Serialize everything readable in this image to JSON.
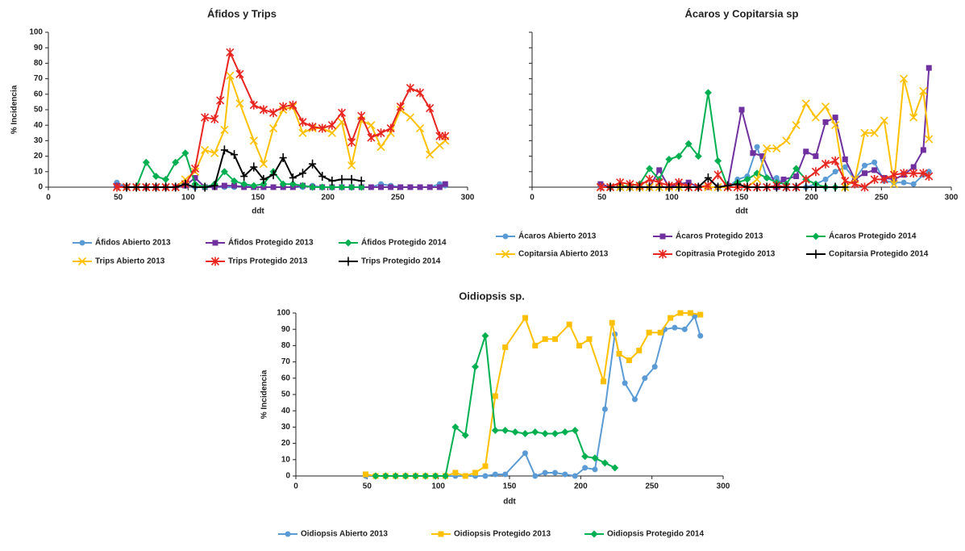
{
  "chart_data": [
    {
      "type": "line",
      "title": "Áfidos y Trips",
      "xlabel": "ddt",
      "ylabel": "% Incidencia",
      "xlim": [
        0,
        300
      ],
      "xticks": [
        0,
        50,
        100,
        150,
        200,
        250,
        300
      ],
      "ylim": [
        0,
        100
      ],
      "yticks": [
        0,
        10,
        20,
        30,
        40,
        50,
        60,
        70,
        80,
        90,
        100
      ],
      "ytick_labels": true,
      "series": [
        {
          "name": "Áfidos Abierto 2013",
          "color": "#5b9bd5",
          "marker": "circle",
          "x": [
            49,
            56,
            63,
            70,
            77,
            84,
            91,
            98,
            105,
            112,
            119,
            126,
            133,
            140,
            147,
            154,
            161,
            168,
            175,
            182,
            189,
            196,
            203,
            210,
            217,
            224,
            231,
            238,
            245,
            252,
            259,
            266,
            273,
            280,
            284
          ],
          "values": [
            3,
            0,
            0,
            0,
            0,
            0,
            0,
            1,
            0,
            0,
            0,
            0,
            0,
            1,
            0,
            0,
            0,
            0,
            0,
            0,
            1,
            0,
            0,
            0,
            0,
            0,
            0,
            2,
            1,
            0,
            0,
            0,
            0,
            2,
            1
          ]
        },
        {
          "name": "Áfidos Protegido 2013",
          "color": "#7030a0",
          "marker": "square",
          "x": [
            49,
            56,
            63,
            70,
            77,
            84,
            91,
            98,
            105,
            112,
            119,
            126,
            133,
            140,
            147,
            154,
            161,
            168,
            175,
            182,
            189,
            196,
            203,
            210,
            217,
            224,
            231,
            238,
            245,
            252,
            259,
            266,
            273,
            280,
            284
          ],
          "values": [
            1,
            0,
            0,
            0,
            0,
            0,
            0,
            1,
            6,
            0,
            0,
            1,
            1,
            0,
            0,
            0,
            0,
            0,
            0,
            1,
            0,
            0,
            0,
            0,
            0,
            0,
            0,
            0,
            0,
            0,
            0,
            0,
            0,
            0,
            2
          ]
        },
        {
          "name": "Áfidos Protegido 2014",
          "color": "#00b050",
          "marker": "diamond",
          "x": [
            56,
            63,
            70,
            77,
            84,
            91,
            98,
            105,
            112,
            119,
            126,
            133,
            140,
            147,
            154,
            161,
            168,
            175,
            182,
            189,
            196,
            203,
            210,
            217,
            224
          ],
          "values": [
            0,
            0,
            16,
            7,
            5,
            16,
            22,
            2,
            0,
            2,
            10,
            4,
            2,
            1,
            2,
            10,
            2,
            2,
            1,
            0,
            0,
            0,
            0,
            0,
            0
          ]
        },
        {
          "name": "Trips Abierto 2013",
          "color": "#ffc000",
          "marker": "x",
          "x": [
            49,
            56,
            63,
            70,
            77,
            84,
            91,
            98,
            105,
            112,
            119,
            126,
            130,
            137,
            147,
            154,
            161,
            168,
            175,
            182,
            189,
            196,
            203,
            210,
            217,
            224,
            231,
            238,
            245,
            252,
            259,
            266,
            273,
            280,
            284
          ],
          "values": [
            0,
            0,
            0,
            0,
            0,
            0,
            0,
            5,
            10,
            24,
            22,
            37,
            72,
            54,
            30,
            15,
            38,
            50,
            52,
            35,
            38,
            38,
            35,
            42,
            14,
            43,
            40,
            26,
            35,
            50,
            45,
            38,
            21,
            27,
            30
          ]
        },
        {
          "name": "Trips Protegido 2013",
          "color": "#e8251f",
          "marker": "star",
          "x": [
            49,
            56,
            63,
            70,
            77,
            84,
            91,
            98,
            105,
            112,
            119,
            123,
            130,
            137,
            147,
            154,
            161,
            168,
            175,
            182,
            189,
            196,
            203,
            210,
            217,
            224,
            231,
            238,
            245,
            252,
            259,
            266,
            273,
            280,
            284
          ],
          "values": [
            0,
            0,
            0,
            0,
            0,
            0,
            0,
            2,
            12,
            45,
            44,
            56,
            87,
            73,
            53,
            50,
            48,
            52,
            53,
            42,
            39,
            38,
            40,
            48,
            29,
            46,
            32,
            35,
            38,
            52,
            64,
            61,
            51,
            33,
            33
          ]
        },
        {
          "name": "Trips Protegido 2014",
          "color": "#000000",
          "marker": "plus",
          "x": [
            56,
            63,
            70,
            77,
            84,
            91,
            98,
            105,
            112,
            119,
            126,
            133,
            140,
            147,
            154,
            161,
            168,
            175,
            182,
            189,
            196,
            203,
            210,
            217,
            224
          ],
          "values": [
            0,
            0,
            0,
            0,
            0,
            0,
            2,
            0,
            0,
            1,
            24,
            21,
            7,
            13,
            5,
            8,
            19,
            6,
            9,
            15,
            7,
            4,
            5,
            5,
            4
          ]
        }
      ]
    },
    {
      "type": "line",
      "title": "Ácaros y Copitarsia sp",
      "xlabel": "ddt",
      "xlim": [
        0,
        300
      ],
      "xticks": [
        0,
        50,
        100,
        150,
        200,
        250,
        300
      ],
      "ylim": [
        0,
        100
      ],
      "yticks": [
        0,
        10,
        20,
        30,
        40,
        50,
        60,
        70,
        80,
        90,
        100
      ],
      "ytick_labels": false,
      "series": [
        {
          "name": "Ácaros Abierto 2013",
          "color": "#5b9bd5",
          "marker": "circle",
          "x": [
            49,
            56,
            63,
            70,
            77,
            84,
            91,
            98,
            105,
            112,
            119,
            126,
            133,
            140,
            147,
            154,
            161,
            168,
            175,
            182,
            189,
            196,
            203,
            210,
            217,
            224,
            231,
            238,
            245,
            252,
            259,
            266,
            273,
            280,
            284
          ],
          "values": [
            0,
            0,
            0,
            0,
            0,
            0,
            0,
            0,
            0,
            0,
            0,
            0,
            0,
            0,
            5,
            7,
            26,
            6,
            6,
            0,
            0,
            0,
            2,
            5,
            10,
            13,
            5,
            14,
            16,
            4,
            3,
            3,
            2,
            8,
            10
          ]
        },
        {
          "name": "Ácaros Protegido 2013",
          "color": "#7030a0",
          "marker": "square",
          "x": [
            49,
            56,
            63,
            70,
            77,
            84,
            91,
            98,
            105,
            112,
            119,
            126,
            133,
            140,
            150,
            158,
            165,
            175,
            180,
            189,
            196,
            203,
            210,
            217,
            224,
            231,
            238,
            245,
            252,
            259,
            266,
            273,
            280,
            284
          ],
          "values": [
            2,
            0,
            0,
            0,
            0,
            0,
            11,
            0,
            2,
            3,
            0,
            0,
            0,
            1,
            50,
            22,
            20,
            0,
            5,
            7,
            23,
            20,
            42,
            45,
            18,
            5,
            9,
            11,
            6,
            5,
            8,
            13,
            24,
            77
          ]
        },
        {
          "name": "Ácaros Protegido 2014",
          "color": "#00b050",
          "marker": "diamond",
          "x": [
            56,
            63,
            70,
            77,
            84,
            91,
            98,
            105,
            112,
            119,
            126,
            133,
            140,
            147,
            154,
            161,
            168,
            175,
            182,
            189,
            196,
            203,
            210,
            217,
            224
          ],
          "values": [
            0,
            0,
            1,
            2,
            12,
            5,
            18,
            20,
            28,
            20,
            61,
            17,
            0,
            3,
            5,
            9,
            6,
            3,
            2,
            12,
            5,
            2,
            0,
            0,
            0
          ]
        },
        {
          "name": "Copitarsia Abierto 2013",
          "color": "#ffc000",
          "marker": "x",
          "x": [
            49,
            56,
            63,
            70,
            77,
            84,
            91,
            98,
            105,
            112,
            119,
            126,
            133,
            140,
            147,
            154,
            161,
            168,
            175,
            182,
            189,
            196,
            203,
            210,
            217,
            224,
            231,
            238,
            245,
            252,
            259,
            266,
            273,
            280,
            284
          ],
          "values": [
            0,
            0,
            0,
            0,
            0,
            0,
            0,
            0,
            0,
            0,
            0,
            0,
            0,
            0,
            0,
            0,
            5,
            25,
            25,
            30,
            40,
            54,
            45,
            52,
            40,
            0,
            5,
            35,
            35,
            43,
            2,
            70,
            45,
            62,
            31
          ]
        },
        {
          "name": "Copitrasia Protegido 2013",
          "color": "#e8251f",
          "marker": "star",
          "x": [
            49,
            56,
            63,
            70,
            77,
            84,
            91,
            98,
            105,
            112,
            119,
            126,
            133,
            140,
            147,
            154,
            161,
            168,
            175,
            182,
            189,
            196,
            203,
            210,
            217,
            224,
            231,
            238,
            245,
            252,
            259,
            266,
            273,
            280,
            284
          ],
          "values": [
            0,
            0,
            3,
            2,
            1,
            5,
            3,
            1,
            3,
            0,
            0,
            1,
            8,
            0,
            0,
            0,
            0,
            0,
            1,
            0,
            0,
            5,
            10,
            15,
            17,
            4,
            2,
            0,
            5,
            5,
            8,
            9,
            9,
            9,
            7
          ]
        },
        {
          "name": "Copitarsia Protegido 2014",
          "color": "#000000",
          "marker": "plus",
          "x": [
            56,
            63,
            70,
            77,
            84,
            91,
            98,
            105,
            112,
            119,
            126,
            133,
            140,
            147,
            154,
            161,
            168,
            175,
            182,
            189,
            196,
            203,
            210,
            217,
            224
          ],
          "values": [
            0,
            0,
            0,
            0,
            0,
            0,
            0,
            0,
            0,
            0,
            6,
            0,
            1,
            2,
            0,
            0,
            0,
            0,
            0,
            0,
            0,
            0,
            0,
            0,
            0
          ]
        }
      ]
    },
    {
      "type": "line",
      "title": "Oidiopsis sp.",
      "xlabel": "ddt",
      "ylabel": "% Incidencia",
      "xlim": [
        0,
        300
      ],
      "xticks": [
        0,
        50,
        100,
        150,
        200,
        250,
        300
      ],
      "ylim": [
        0,
        100
      ],
      "yticks": [
        0,
        10,
        20,
        30,
        40,
        50,
        60,
        70,
        80,
        90,
        100
      ],
      "ytick_labels": true,
      "series": [
        {
          "name": "Oidiopsis Abierto 2013",
          "color": "#5b9bd5",
          "marker": "circle",
          "x": [
            49,
            56,
            63,
            70,
            77,
            84,
            91,
            98,
            105,
            112,
            119,
            126,
            133,
            140,
            147,
            161,
            168,
            175,
            182,
            189,
            196,
            203,
            210,
            217,
            224,
            231,
            238,
            245,
            252,
            259,
            266,
            273,
            280,
            284
          ],
          "values": [
            0,
            0,
            0,
            0,
            0,
            0,
            0,
            0,
            0,
            0,
            0,
            0,
            0,
            1,
            1,
            14,
            0,
            2,
            2,
            1,
            0,
            5,
            4,
            41,
            87,
            57,
            47,
            60,
            67,
            90,
            91,
            90,
            98,
            86
          ]
        },
        {
          "name": "Oidiopsis Protegido 2013",
          "color": "#ffc000",
          "marker": "square",
          "x": [
            49,
            56,
            63,
            70,
            77,
            84,
            91,
            98,
            105,
            112,
            119,
            126,
            133,
            140,
            147,
            161,
            168,
            175,
            182,
            192,
            199,
            206,
            216,
            222,
            227,
            234,
            241,
            248,
            256,
            263,
            270,
            277,
            284
          ],
          "values": [
            1,
            0,
            0,
            0,
            0,
            0,
            0,
            0,
            0,
            2,
            0,
            2,
            6,
            49,
            79,
            97,
            80,
            84,
            84,
            93,
            80,
            84,
            58,
            94,
            75,
            71,
            77,
            88,
            88,
            97,
            100,
            100,
            99
          ]
        },
        {
          "name": "Oidiopsis Protegido 2014",
          "color": "#00b050",
          "marker": "diamond",
          "x": [
            56,
            63,
            70,
            77,
            84,
            91,
            98,
            105,
            112,
            119,
            126,
            133,
            140,
            147,
            154,
            161,
            168,
            175,
            182,
            189,
            196,
            203,
            210,
            217,
            224
          ],
          "values": [
            0,
            0,
            0,
            0,
            0,
            0,
            0,
            0,
            30,
            25,
            67,
            86,
            28,
            28,
            27,
            26,
            27,
            26,
            26,
            27,
            28,
            12,
            11,
            8,
            5
          ]
        }
      ]
    }
  ]
}
